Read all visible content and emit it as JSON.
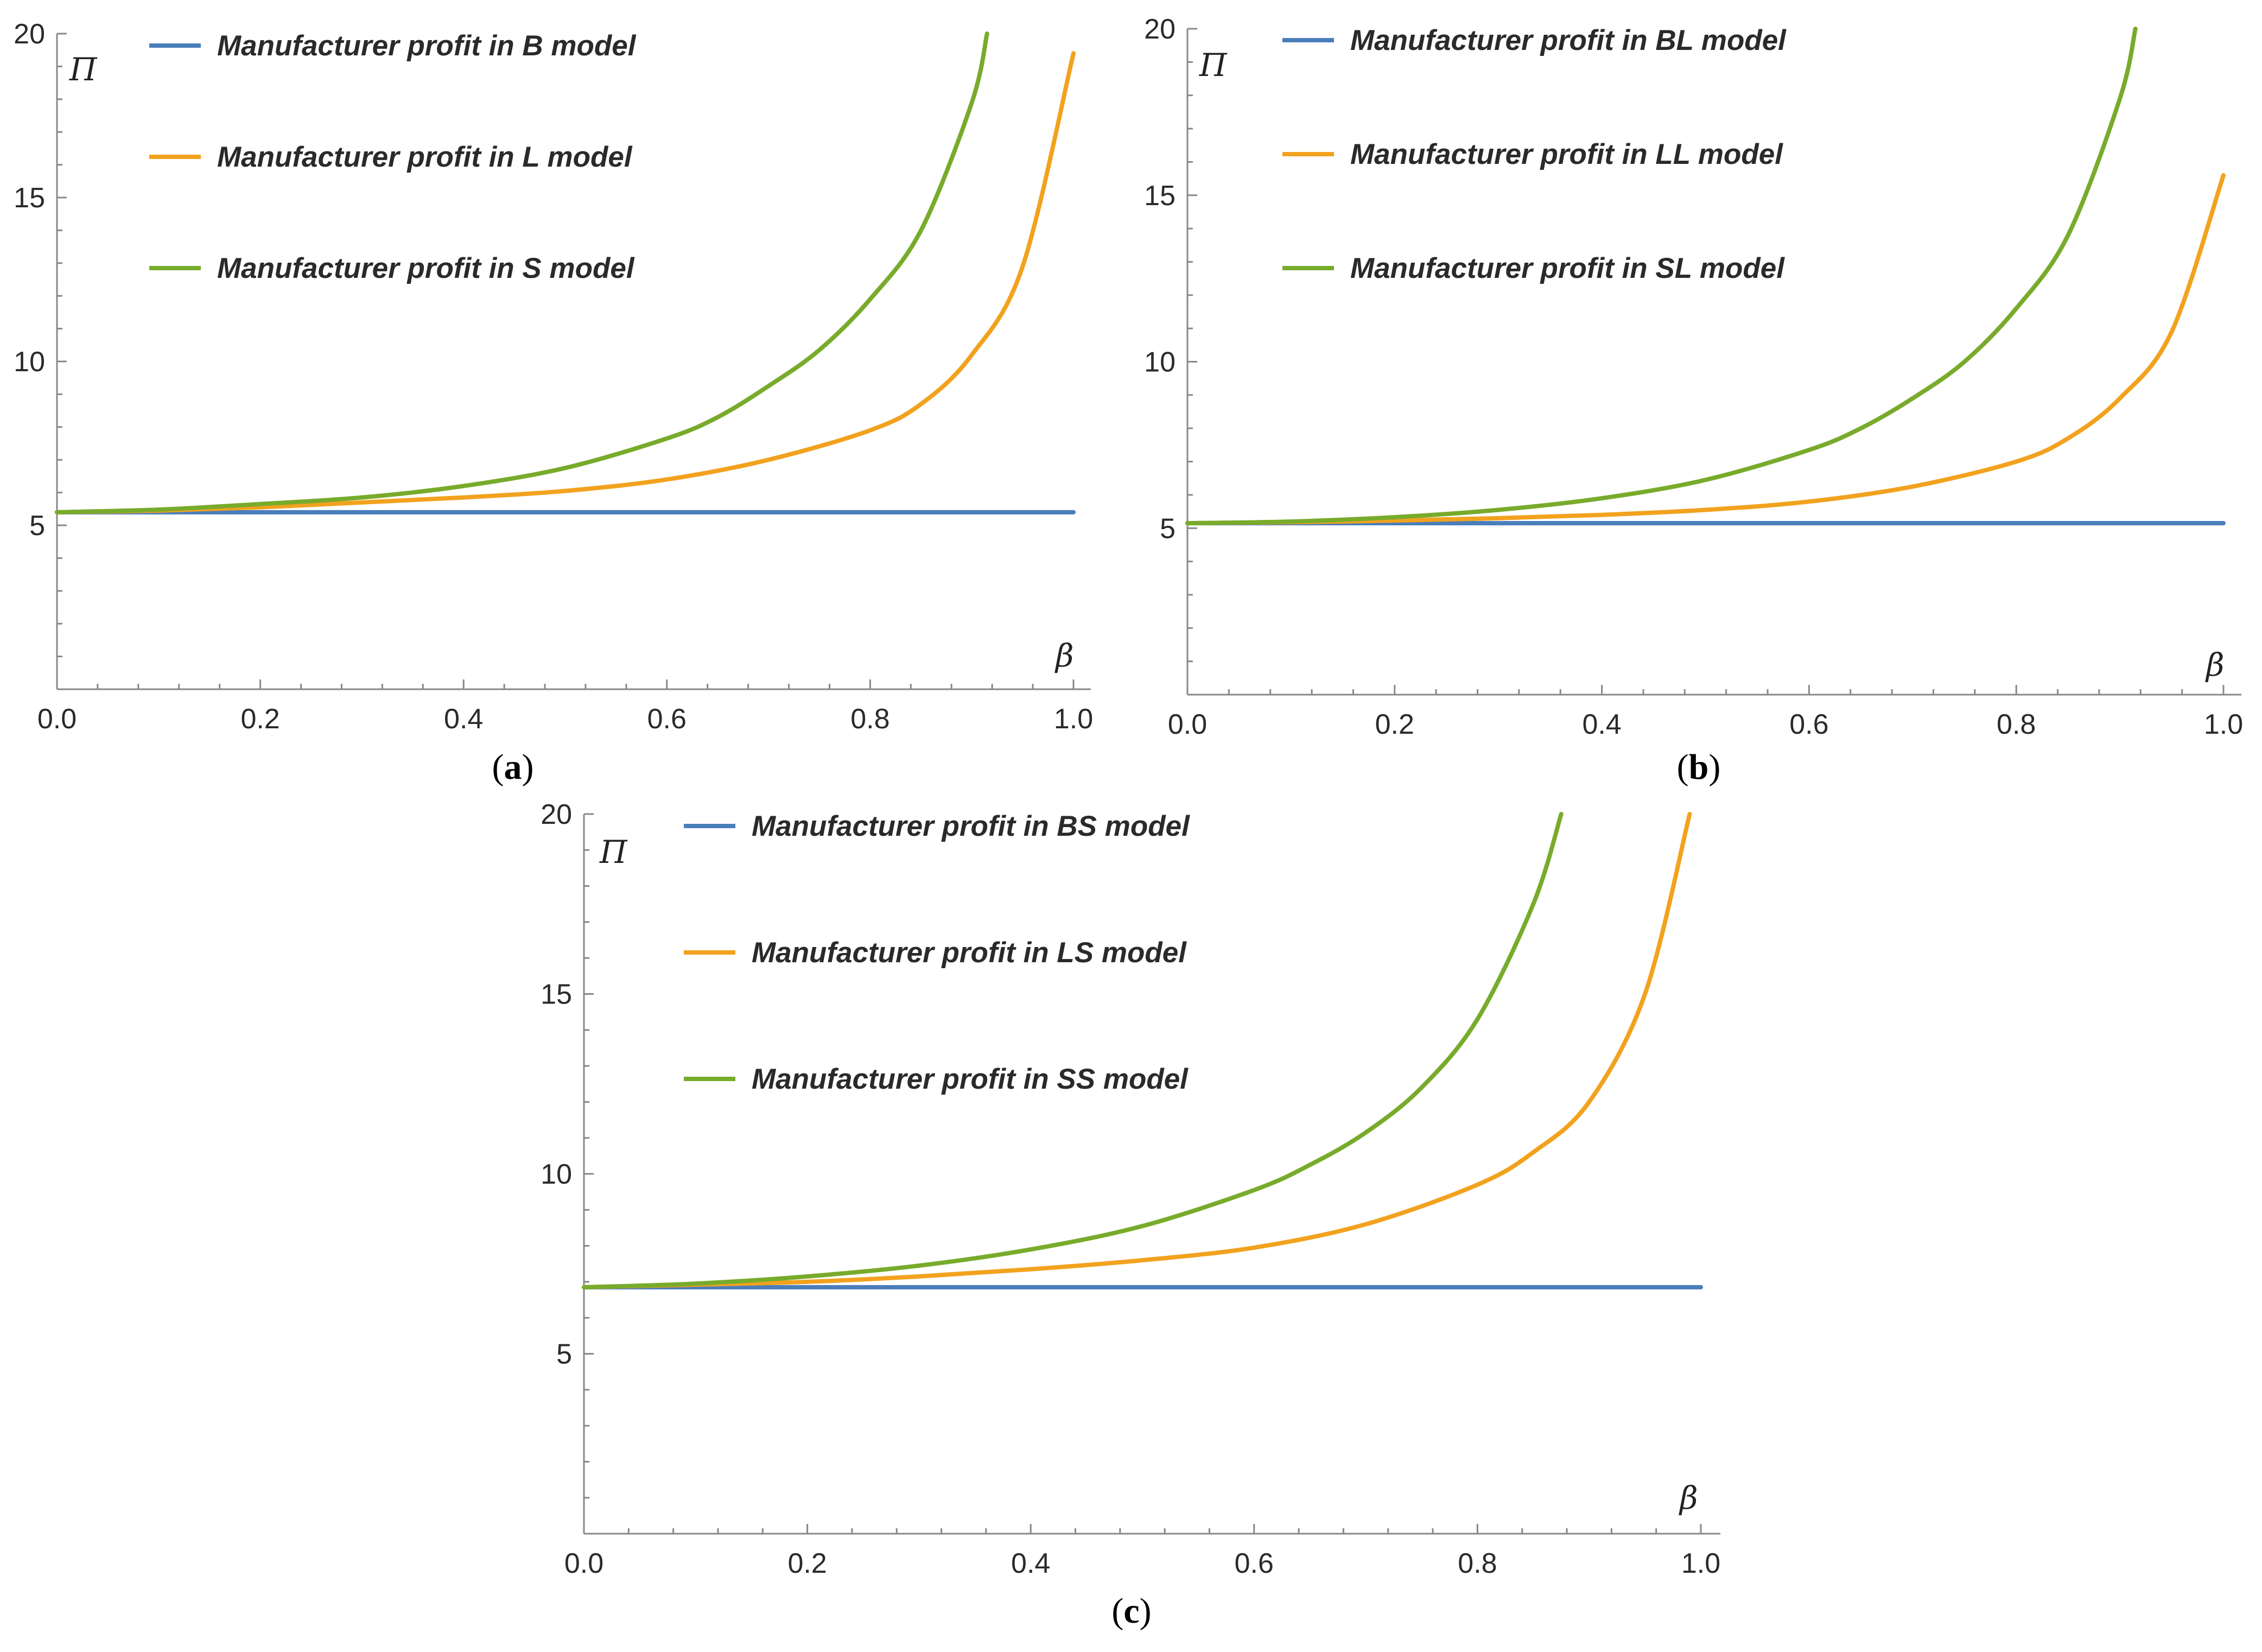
{
  "figure": {
    "colors": {
      "series1": "#4a7ebb",
      "series2": "#f2a21e",
      "series3": "#78ab2b"
    }
  },
  "chart_data": [
    {
      "type": "line",
      "panel_caption": "(a)",
      "caption_letter": "a",
      "xlabel": "β",
      "ylabel": "Π",
      "xlim": [
        0,
        1
      ],
      "ylim": [
        0,
        20
      ],
      "x_ticks": [
        0.0,
        0.2,
        0.4,
        0.6,
        0.8,
        1.0
      ],
      "x_tick_labels": [
        "0.0",
        "0.2",
        "0.4",
        "0.6",
        "0.8",
        "1.0"
      ],
      "y_ticks": [
        5,
        10,
        15,
        20
      ],
      "y_tick_labels": [
        "5",
        "10",
        "15",
        "20"
      ],
      "legend": [
        "Manufacturer profit in B model",
        "Manufacturer profit in L model",
        "Manufacturer profit in S model"
      ],
      "series": [
        {
          "name": "Manufacturer profit in B model",
          "color": "#4a7ebb",
          "x": [
            0,
            0.2,
            0.4,
            0.6,
            0.8,
            1.0
          ],
          "y": [
            5.4,
            5.4,
            5.4,
            5.4,
            5.4,
            5.4
          ]
        },
        {
          "name": "Manufacturer profit in L model",
          "color": "#f2a21e",
          "x": [
            0,
            0.1,
            0.2,
            0.3,
            0.4,
            0.5,
            0.6,
            0.7,
            0.8,
            0.85,
            0.9,
            0.95,
            1.0
          ],
          "y": [
            5.4,
            5.45,
            5.55,
            5.7,
            5.85,
            6.05,
            6.4,
            7.0,
            7.9,
            8.7,
            10.2,
            12.9,
            19.4
          ]
        },
        {
          "name": "Manufacturer profit in S model",
          "color": "#78ab2b",
          "x": [
            0,
            0.1,
            0.2,
            0.3,
            0.4,
            0.5,
            0.6,
            0.65,
            0.7,
            0.75,
            0.8,
            0.85,
            0.9,
            0.915
          ],
          "y": [
            5.4,
            5.48,
            5.65,
            5.85,
            6.2,
            6.75,
            7.65,
            8.3,
            9.25,
            10.35,
            11.9,
            14.0,
            17.9,
            20.0
          ]
        }
      ]
    },
    {
      "type": "line",
      "panel_caption": "(b)",
      "caption_letter": "b",
      "xlabel": "β",
      "ylabel": "Π",
      "xlim": [
        0,
        1
      ],
      "ylim": [
        0,
        20
      ],
      "x_ticks": [
        0.0,
        0.2,
        0.4,
        0.6,
        0.8,
        1.0
      ],
      "x_tick_labels": [
        "0.0",
        "0.2",
        "0.4",
        "0.6",
        "0.8",
        "1.0"
      ],
      "y_ticks": [
        5,
        10,
        15,
        20
      ],
      "y_tick_labels": [
        "5",
        "10",
        "15",
        "20"
      ],
      "legend": [
        "Manufacturer profit in BL model",
        "Manufacturer profit in LL model",
        "Manufacturer profit in SL model"
      ],
      "series": [
        {
          "name": "Manufacturer profit in BL model",
          "color": "#4a7ebb",
          "x": [
            0,
            0.2,
            0.4,
            0.6,
            0.8,
            1.0
          ],
          "y": [
            5.15,
            5.15,
            5.15,
            5.15,
            5.15,
            5.15
          ]
        },
        {
          "name": "Manufacturer profit in LL model",
          "color": "#f2a21e",
          "x": [
            0,
            0.1,
            0.2,
            0.3,
            0.4,
            0.5,
            0.6,
            0.7,
            0.8,
            0.85,
            0.9,
            0.95,
            1.0
          ],
          "y": [
            5.15,
            5.18,
            5.23,
            5.3,
            5.4,
            5.55,
            5.8,
            6.25,
            7.0,
            7.7,
            8.9,
            10.9,
            15.6
          ]
        },
        {
          "name": "Manufacturer profit in SL model",
          "color": "#78ab2b",
          "x": [
            0,
            0.1,
            0.2,
            0.3,
            0.4,
            0.5,
            0.6,
            0.65,
            0.7,
            0.75,
            0.8,
            0.85,
            0.9,
            0.915
          ],
          "y": [
            5.15,
            5.2,
            5.33,
            5.55,
            5.9,
            6.45,
            7.35,
            8.0,
            8.9,
            10.0,
            11.6,
            13.8,
            17.9,
            20.0
          ]
        }
      ]
    },
    {
      "type": "line",
      "panel_caption": "(c)",
      "caption_letter": "c",
      "xlabel": "β",
      "ylabel": "Π",
      "xlim": [
        0,
        1
      ],
      "ylim": [
        0,
        20
      ],
      "x_ticks": [
        0.0,
        0.2,
        0.4,
        0.6,
        0.8,
        1.0
      ],
      "x_tick_labels": [
        "0.0",
        "0.2",
        "0.4",
        "0.6",
        "0.8",
        "1.0"
      ],
      "y_ticks": [
        5,
        10,
        15,
        20
      ],
      "y_tick_labels": [
        "5",
        "10",
        "15",
        "20"
      ],
      "legend": [
        "Manufacturer profit in BS model",
        "Manufacturer profit in LS model",
        "Manufacturer profit in SS model"
      ],
      "series": [
        {
          "name": "Manufacturer profit in BS model",
          "color": "#4a7ebb",
          "x": [
            0,
            0.2,
            0.4,
            0.6,
            0.8,
            1.0
          ],
          "y": [
            6.85,
            6.85,
            6.85,
            6.85,
            6.85,
            6.85
          ]
        },
        {
          "name": "Manufacturer profit in LS model",
          "color": "#f2a21e",
          "x": [
            0,
            0.1,
            0.2,
            0.3,
            0.4,
            0.5,
            0.6,
            0.7,
            0.8,
            0.85,
            0.9,
            0.95,
            0.99
          ],
          "y": [
            6.85,
            6.92,
            7.0,
            7.15,
            7.35,
            7.6,
            7.95,
            8.6,
            9.7,
            10.6,
            12.0,
            15.0,
            20.0
          ]
        },
        {
          "name": "Manufacturer profit in SS model",
          "color": "#78ab2b",
          "x": [
            0,
            0.1,
            0.2,
            0.3,
            0.4,
            0.5,
            0.6,
            0.65,
            0.7,
            0.75,
            0.8,
            0.85,
            0.875
          ],
          "y": [
            6.85,
            6.95,
            7.15,
            7.45,
            7.9,
            8.55,
            9.55,
            10.25,
            11.15,
            12.4,
            14.3,
            17.5,
            20.0
          ]
        }
      ]
    }
  ]
}
